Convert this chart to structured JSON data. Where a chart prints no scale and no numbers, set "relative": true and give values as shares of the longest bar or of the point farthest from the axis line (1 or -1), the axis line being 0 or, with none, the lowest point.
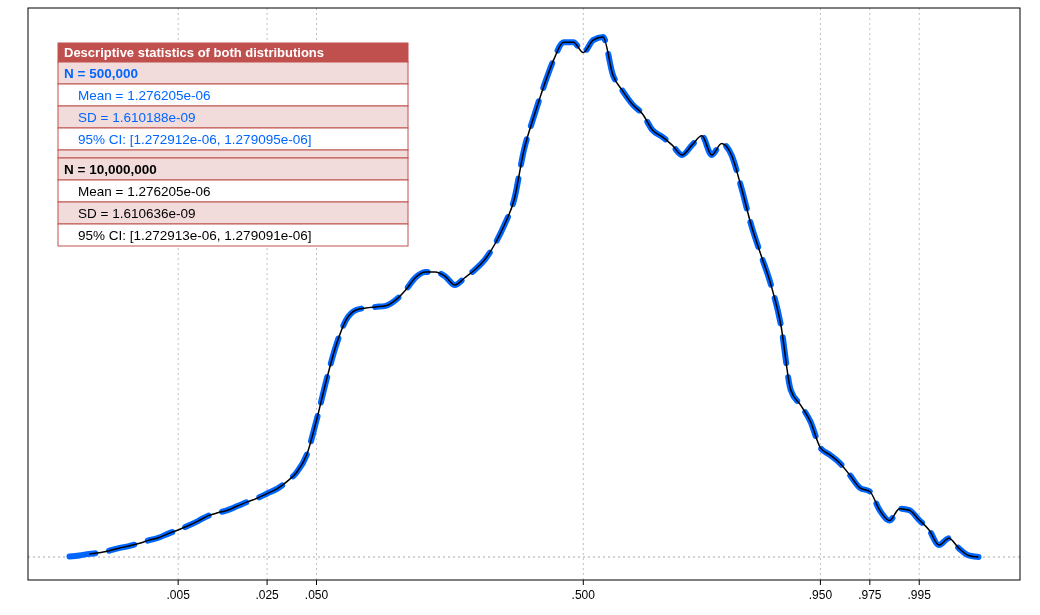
{
  "chart_data": {
    "type": "line",
    "relative": true,
    "categories": [
      null,
      null,
      null,
      null,
      null,
      null,
      null,
      null,
      null,
      null,
      null,
      ".005",
      null,
      null,
      null,
      null,
      null,
      null,
      null,
      null,
      ".025",
      null,
      null,
      null,
      null,
      ".050",
      null,
      null,
      null,
      null,
      null,
      null,
      null,
      null,
      null,
      null,
      null,
      null,
      null,
      null,
      null,
      null,
      null,
      null,
      null,
      null,
      null,
      null,
      null,
      null,
      null,
      null,
      ".500",
      null,
      null,
      null,
      null,
      null,
      null,
      null,
      null,
      null,
      null,
      null,
      null,
      null,
      null,
      null,
      null,
      null,
      null,
      null,
      null,
      null,
      null,
      null,
      ".950",
      null,
      null,
      null,
      null,
      ".975",
      null,
      null,
      null,
      null,
      ".995",
      null,
      null,
      null,
      null,
      null,
      null
    ],
    "grid": "x",
    "tick_labels": "x",
    "series": [
      {
        "color": "#000000",
        "line_style": "solid",
        "values": [
          null,
          null,
          0.006,
          0.008,
          0.012,
          0.017,
          0.021,
          0.026,
          0.032,
          0.037,
          0.045,
          0.052,
          0.06,
          0.069,
          0.079,
          0.085,
          0.09,
          0.098,
          0.106,
          0.113,
          0.122,
          0.131,
          0.145,
          0.163,
          0.196,
          0.263,
          0.34,
          0.408,
          0.456,
          0.475,
          0.479,
          0.481,
          0.483,
          0.494,
          0.513,
          0.537,
          0.548,
          0.548,
          0.54,
          0.523,
          0.537,
          0.552,
          0.571,
          0.6,
          0.638,
          0.687,
          0.783,
          0.847,
          0.905,
          0.956,
          0.99,
          0.99,
          0.97,
          0.994,
          1,
          0.927,
          0.896,
          0.87,
          0.852,
          0.821,
          0.808,
          0.792,
          0.773,
          0.792,
          0.81,
          0.773,
          0.795,
          0.773,
          0.71,
          0.638,
          0.58,
          0.523,
          0.446,
          0.321,
          0.292,
          0.26,
          0.21,
          0.196,
          0.18,
          0.157,
          0.133,
          0.126,
          0.09,
          0.07,
          0.093,
          0.09,
          0.071,
          0.052,
          0.023,
          0.036,
          0.017,
          0.003,
          0
        ]
      },
      {
        "color": "#0066ff",
        "line_style": "dashed",
        "values": [
          0.001,
          0.003,
          0.006,
          0.008,
          0.012,
          0.017,
          0.021,
          0.026,
          0.032,
          0.037,
          0.045,
          0.052,
          0.06,
          0.069,
          0.079,
          0.085,
          0.09,
          0.098,
          0.106,
          0.113,
          0.122,
          0.131,
          0.145,
          0.163,
          0.196,
          0.263,
          0.34,
          0.408,
          0.456,
          0.475,
          0.479,
          0.481,
          0.483,
          0.494,
          0.513,
          0.537,
          0.548,
          0.548,
          0.54,
          0.523,
          0.537,
          0.552,
          0.571,
          0.6,
          0.638,
          0.687,
          0.783,
          0.847,
          0.905,
          0.956,
          0.99,
          0.99,
          0.97,
          0.994,
          1,
          0.927,
          0.896,
          0.87,
          0.852,
          0.821,
          0.808,
          0.792,
          0.773,
          0.792,
          0.81,
          0.773,
          0.795,
          0.773,
          0.71,
          0.638,
          0.58,
          0.523,
          0.446,
          0.321,
          0.292,
          0.26,
          0.21,
          0.196,
          0.18,
          0.157,
          0.133,
          0.126,
          0.09,
          0.07,
          0.093,
          0.09,
          0.071,
          0.052,
          0.023,
          0.036,
          0.017,
          0.003,
          0
        ]
      }
    ],
    "annotations": [
      "Descriptive statistics of both distributions",
      "N = 500,000",
      "Mean = 1.276205e-06",
      "SD = 1.610188e-09",
      "95% CI: [1.272912e-06, 1.279095e-06]",
      "N = 10,000,000",
      "Mean = 1.276205e-06",
      "SD = 1.610636e-09",
      "95% CI: [1.272913e-06, 1.279091e-06]"
    ]
  }
}
